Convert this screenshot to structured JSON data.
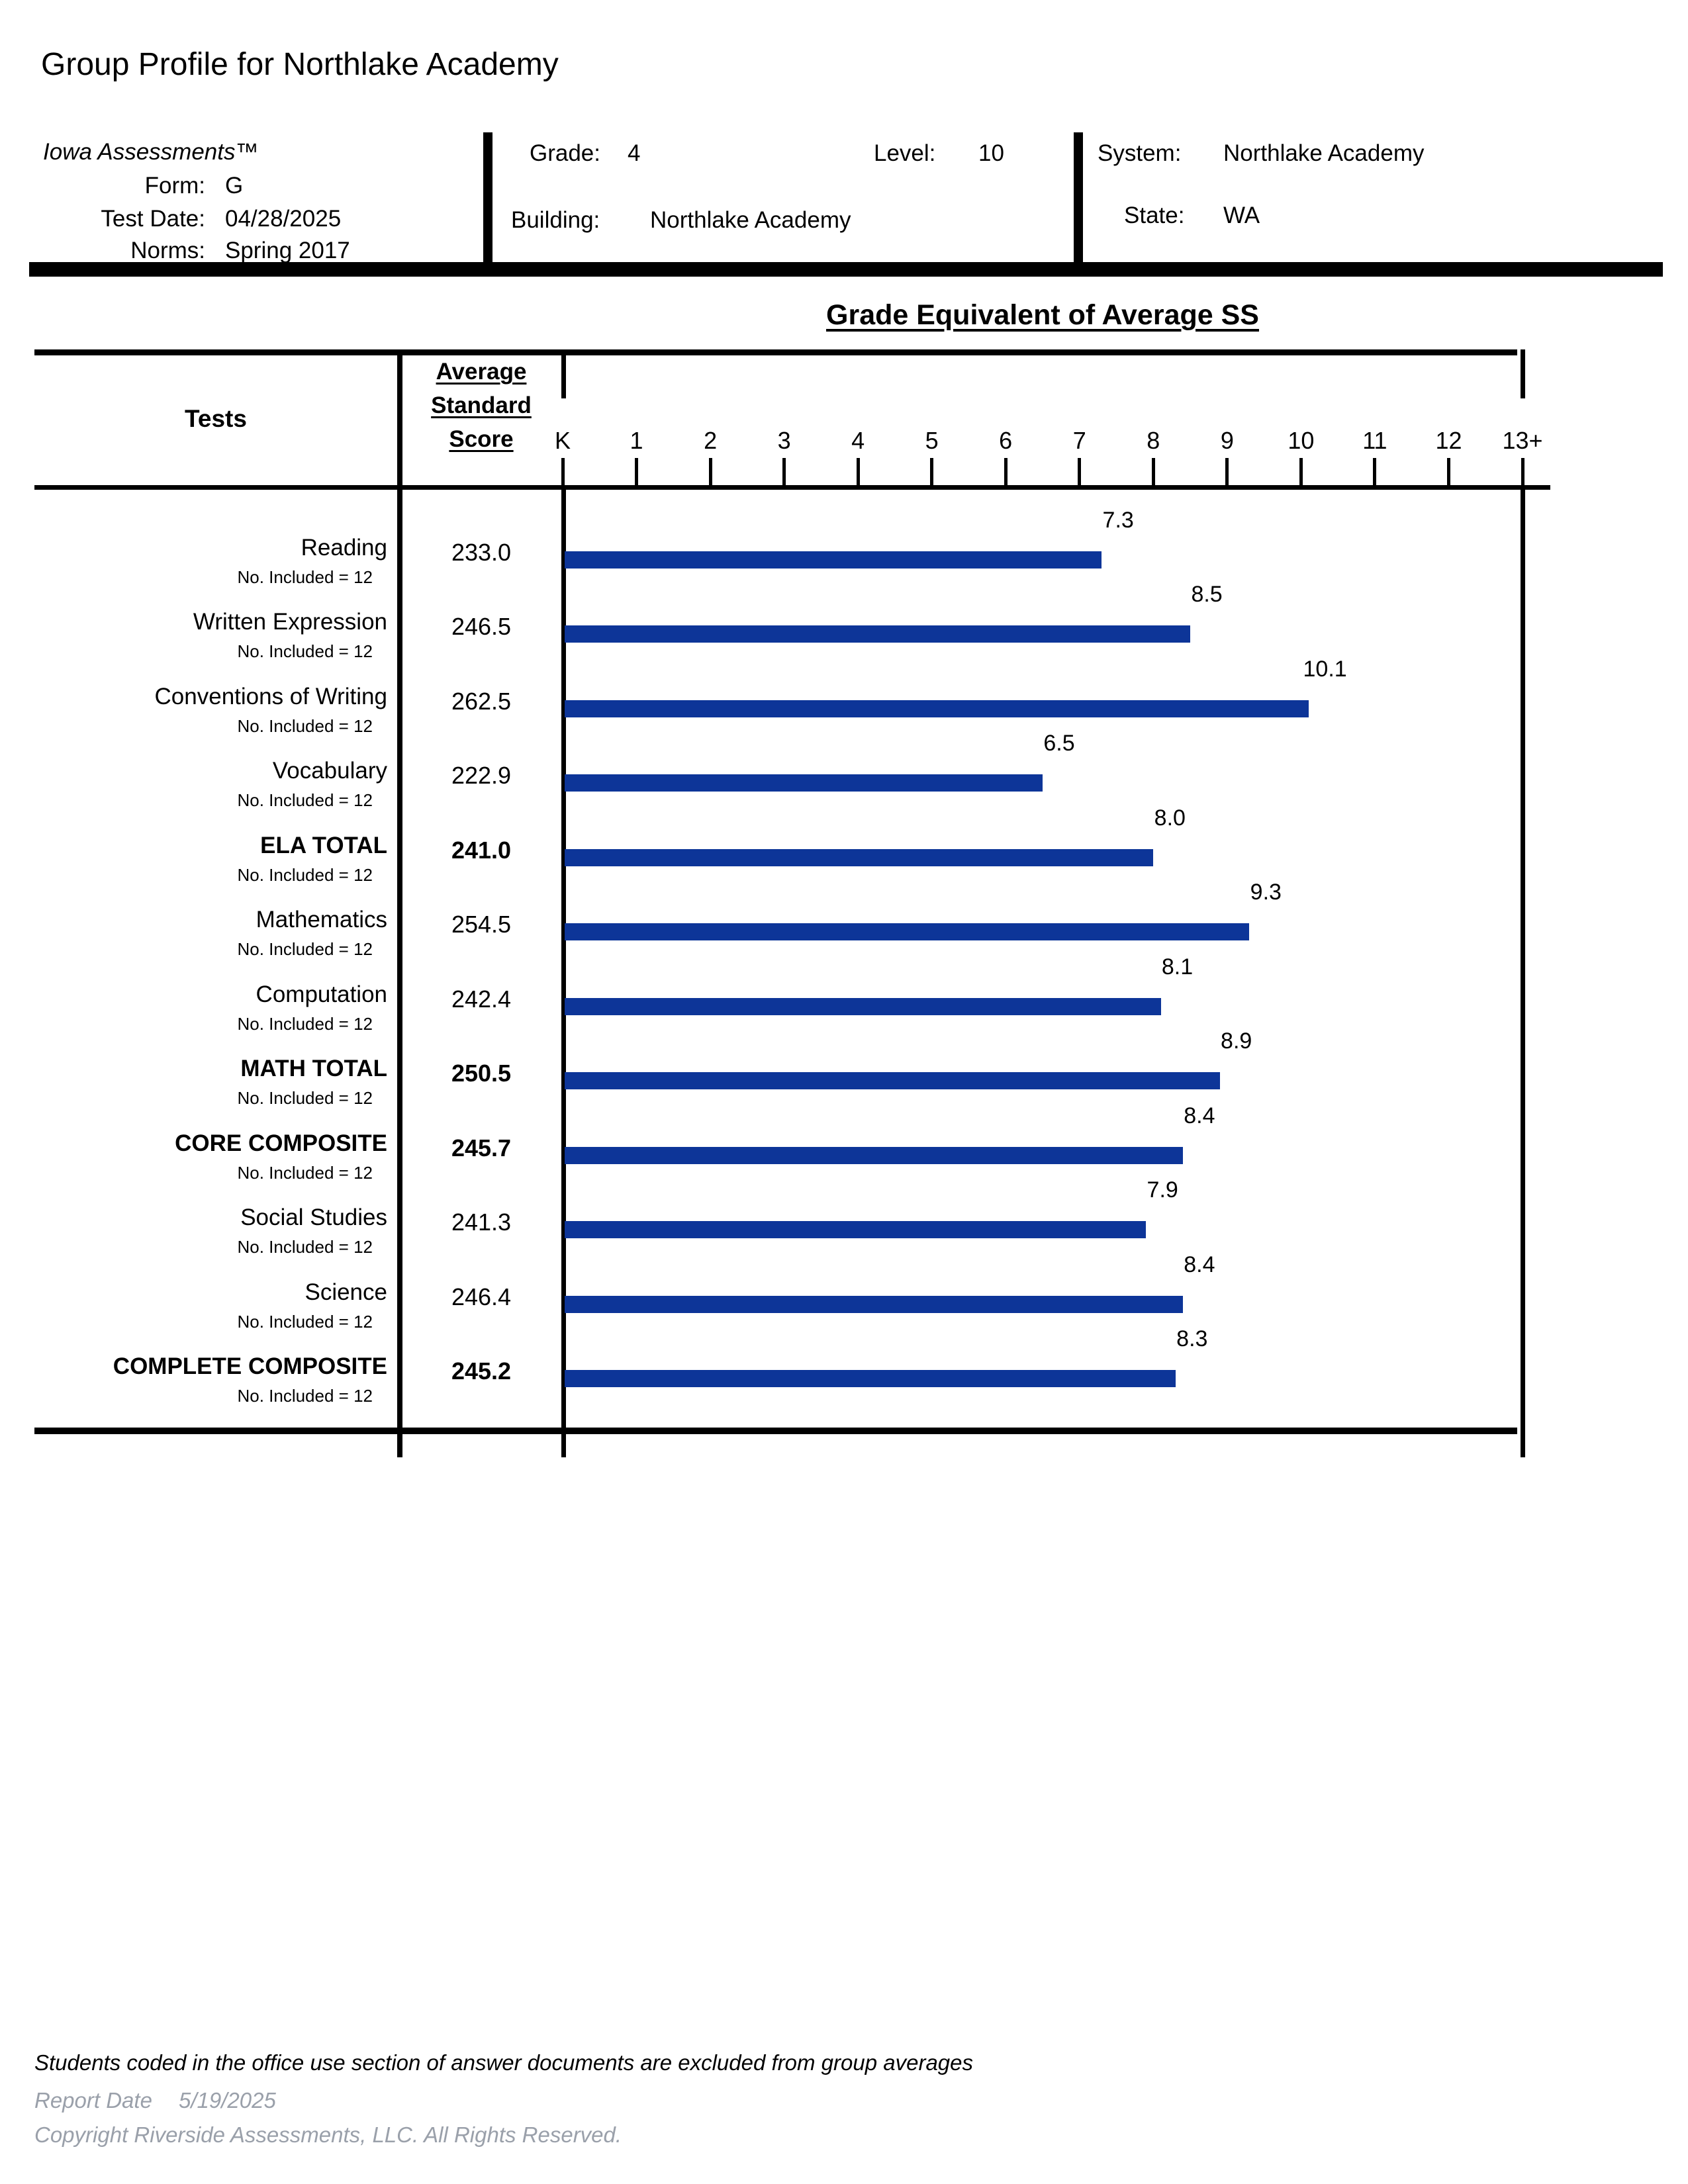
{
  "report": {
    "title": "Group Profile for Northlake Academy"
  },
  "header": {
    "product": "Iowa Assessments™",
    "form_label": "Form:",
    "form_value": "G",
    "test_date_label": "Test Date:",
    "test_date_value": "04/28/2025",
    "norms_label": "Norms:",
    "norms_value": "Spring 2017",
    "grade_label": "Grade:",
    "grade_value": "4",
    "level_label": "Level:",
    "level_value": "10",
    "building_label": "Building:",
    "building_value": "Northlake Academy",
    "system_label": "System:",
    "system_value": "Northlake Academy",
    "state_label": "State:",
    "state_value": "WA"
  },
  "table": {
    "tests_header": "Tests",
    "score_header": "Average\nStandard\nScore",
    "row_note": "No. Included = 12"
  },
  "chart_data": {
    "type": "bar",
    "orientation": "horizontal",
    "title": "Grade Equivalent of Average SS",
    "x_axis_labels": [
      "K",
      "1",
      "2",
      "3",
      "4",
      "5",
      "6",
      "7",
      "8",
      "9",
      "10",
      "11",
      "12",
      "13+"
    ],
    "x_range": [
      "K",
      "13+"
    ],
    "grid": false,
    "bar_color": "#0D3598",
    "categories": [
      "Reading",
      "Written Expression",
      "Conventions of Writing",
      "Vocabulary",
      "ELA TOTAL",
      "Mathematics",
      "Computation",
      "MATH TOTAL",
      "CORE COMPOSITE",
      "Social Studies",
      "Science",
      "COMPLETE COMPOSITE"
    ],
    "values": [
      7.3,
      8.5,
      10.1,
      6.5,
      8.0,
      9.3,
      8.1,
      8.9,
      8.4,
      7.9,
      8.4,
      8.3
    ],
    "average_standard_scores": [
      233.0,
      246.5,
      262.5,
      222.9,
      241.0,
      254.5,
      242.4,
      250.5,
      245.7,
      241.3,
      246.4,
      245.2
    ],
    "no_included": 12,
    "bold_rows": [
      4,
      7,
      8,
      11
    ],
    "ylabel": "Tests",
    "xlabel": "Grade Equivalent of Average SS"
  },
  "footer": {
    "note": "Students coded in the office use section of answer documents are excluded from group averages",
    "report_date_label": "Report Date",
    "report_date_value": "5/19/2025",
    "copyright": "Copyright Riverside Assessments, LLC. All Rights Reserved.",
    "gray_color": "#9aa0aa"
  }
}
